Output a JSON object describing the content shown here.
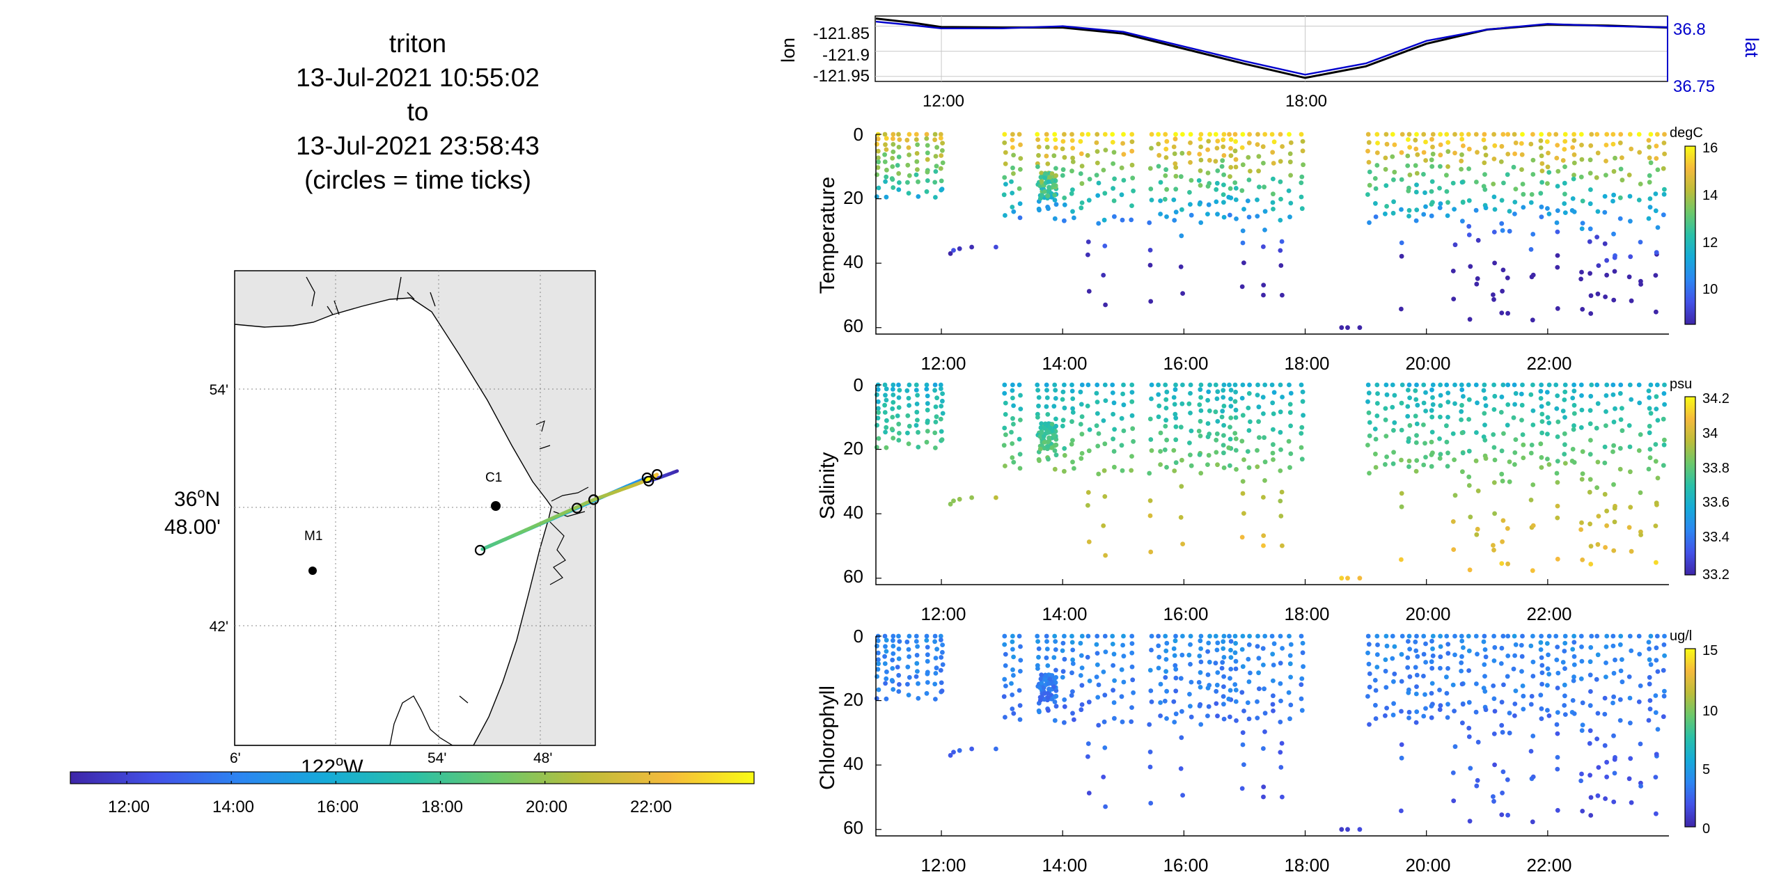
{
  "title": {
    "vehicle": "triton",
    "start": "13-Jul-2021 10:55:02",
    "to": "to",
    "end": "13-Jul-2021 23:58:43",
    "note": "(circles = time ticks)"
  },
  "colors": {
    "lon_line": "#000000",
    "lat_line": "#0000cc",
    "axis": "#000000",
    "land": "#e6e6e6",
    "grid": "#b0b0b0"
  },
  "colormap": [
    "#3e26a8",
    "#4352e8",
    "#2c86f2",
    "#16abd8",
    "#29c0a8",
    "#6bc86b",
    "#bcbd3a",
    "#f5ba3c",
    "#f9fb15"
  ],
  "chart_data": [
    {
      "type": "line",
      "panel": "lon-lat",
      "y_left_label": "lon",
      "y_right_label": "lat",
      "x_ticks": [
        "12:00",
        "18:00"
      ],
      "y_left_ticks": [
        "-121.85",
        "-121.9",
        "-121.95"
      ],
      "y_right_ticks": [
        "36.8",
        "36.75"
      ],
      "grid": true,
      "series": [
        {
          "name": "lon",
          "x": [
            10.92,
            11.5,
            12.0,
            13.0,
            14.0,
            15.0,
            16.0,
            17.0,
            18.0,
            19.0,
            20.0,
            21.0,
            22.0,
            23.0,
            23.98
          ],
          "y": [
            -121.835,
            -121.843,
            -121.852,
            -121.853,
            -121.853,
            -121.865,
            -121.895,
            -121.925,
            -121.953,
            -121.93,
            -121.885,
            -121.857,
            -121.847,
            -121.849,
            -121.853
          ]
        },
        {
          "name": "lat",
          "x": [
            10.92,
            11.5,
            12.0,
            13.0,
            14.0,
            15.0,
            16.0,
            17.0,
            18.0,
            19.0,
            20.0,
            21.0,
            22.0,
            23.0,
            23.98
          ],
          "y": [
            36.801,
            36.798,
            36.795,
            36.795,
            36.797,
            36.792,
            36.779,
            36.766,
            36.754,
            36.764,
            36.784,
            36.794,
            36.799,
            36.797,
            36.796
          ]
        }
      ]
    },
    {
      "type": "scatter",
      "panel": "temperature",
      "ylabel": "Temperature",
      "colorbar_label": "degC",
      "colorbar_ticks": [
        "16",
        "14",
        "12",
        "10"
      ],
      "x_ticks": [
        "12:00",
        "14:00",
        "16:00",
        "18:00",
        "20:00",
        "22:00"
      ],
      "y_ticks": [
        "0",
        "20",
        "40",
        "60"
      ],
      "ylim": [
        0,
        62
      ]
    },
    {
      "type": "scatter",
      "panel": "salinity",
      "ylabel": "Salinity",
      "colorbar_label": "psu",
      "colorbar_ticks": [
        "34.2",
        "34",
        "33.8",
        "33.6",
        "33.4",
        "33.2"
      ],
      "x_ticks": [
        "12:00",
        "14:00",
        "16:00",
        "18:00",
        "20:00",
        "22:00"
      ],
      "y_ticks": [
        "0",
        "20",
        "40",
        "60"
      ],
      "ylim": [
        0,
        62
      ]
    },
    {
      "type": "scatter",
      "panel": "chlorophyll",
      "ylabel": "Chlorophyll",
      "colorbar_label": "ug/l",
      "colorbar_ticks": [
        "15",
        "10",
        "5",
        "0"
      ],
      "x_ticks": [
        "12:00",
        "14:00",
        "16:00",
        "18:00",
        "20:00",
        "22:00"
      ],
      "y_ticks": [
        "0",
        "20",
        "40",
        "60"
      ],
      "ylim": [
        0,
        62
      ]
    }
  ],
  "map": {
    "lat_labels": [
      "54'",
      "42'"
    ],
    "lat_center_deg": "36",
    "lat_center_min": "48.00'",
    "lon_labels": [
      "6'",
      "54'",
      "48'"
    ],
    "lon_center": "122",
    "n_label": "N",
    "w_label": "W",
    "deg": "o",
    "stations": [
      {
        "name": "M1"
      },
      {
        "name": "C1"
      }
    ]
  },
  "time_colorbar": {
    "ticks": [
      "12:00",
      "14:00",
      "16:00",
      "18:00",
      "20:00",
      "22:00"
    ]
  }
}
